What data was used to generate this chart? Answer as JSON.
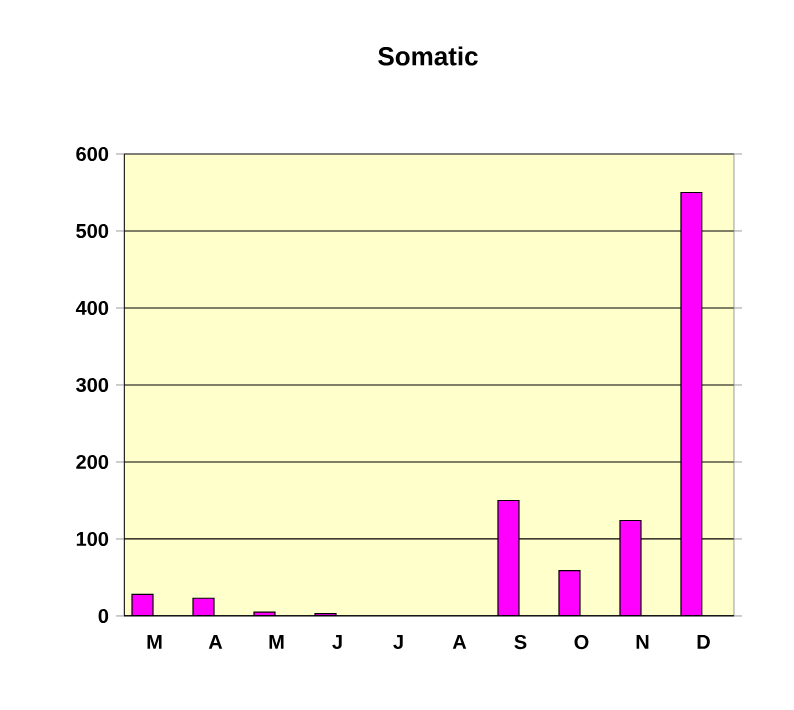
{
  "chart_data": {
    "type": "bar",
    "title": "Somatic",
    "categories": [
      "M",
      "A",
      "M",
      "J",
      "J",
      "A",
      "S",
      "O",
      "N",
      "D"
    ],
    "values": [
      28,
      23,
      5,
      3,
      null,
      null,
      150,
      59,
      124,
      550
    ],
    "color": "#ff00ff",
    "ylim": [
      0,
      600
    ],
    "yticks": [
      0,
      100,
      200,
      300,
      400,
      500,
      600
    ],
    "grid": "y"
  }
}
